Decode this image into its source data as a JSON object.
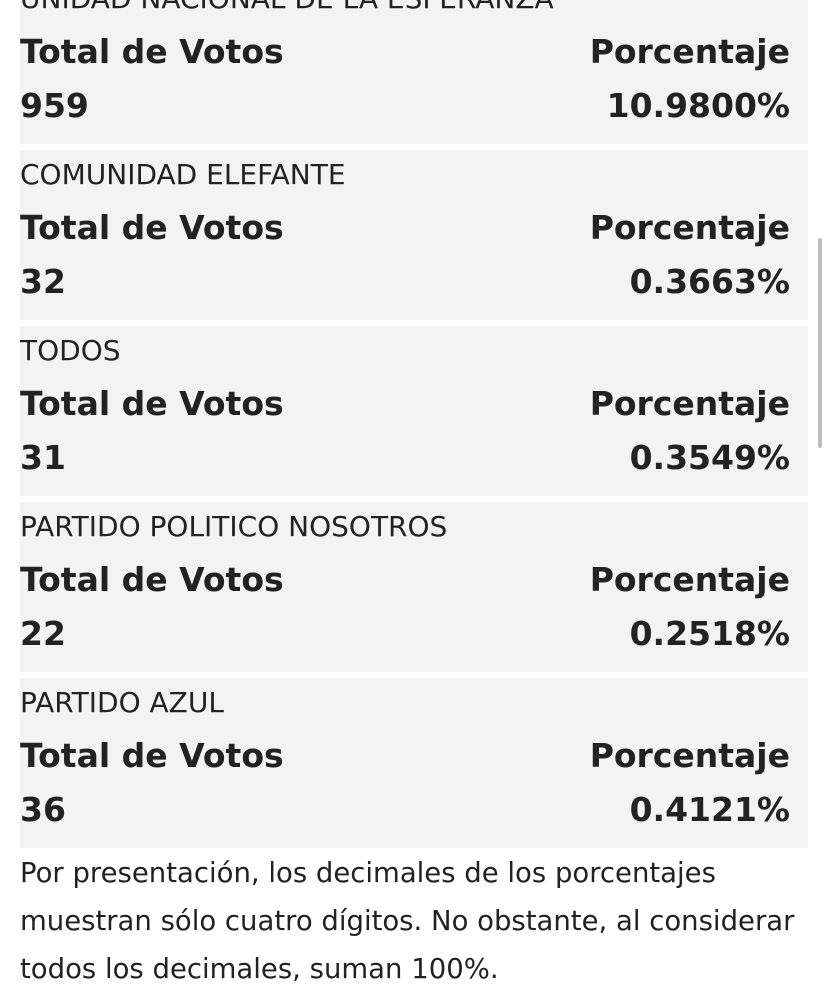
{
  "labels": {
    "total_votes": "Total de Votos",
    "percentage": "Porcentaje"
  },
  "parties": [
    {
      "name": "UNIDAD NACIONAL DE LA ESPERANZA",
      "votes": "959",
      "percent": "10.9800%"
    },
    {
      "name": "COMUNIDAD ELEFANTE",
      "votes": "32",
      "percent": "0.3663%"
    },
    {
      "name": "TODOS",
      "votes": "31",
      "percent": "0.3549%"
    },
    {
      "name": "PARTIDO POLITICO NOSOTROS",
      "votes": "22",
      "percent": "0.2518%"
    },
    {
      "name": "PARTIDO AZUL",
      "votes": "36",
      "percent": "0.4121%"
    }
  ],
  "footnote": "Por presentación, los decimales de los porcentajes muestran sólo cuatro dígitos. No obstante, al considerar todos los decimales, suman 100%."
}
